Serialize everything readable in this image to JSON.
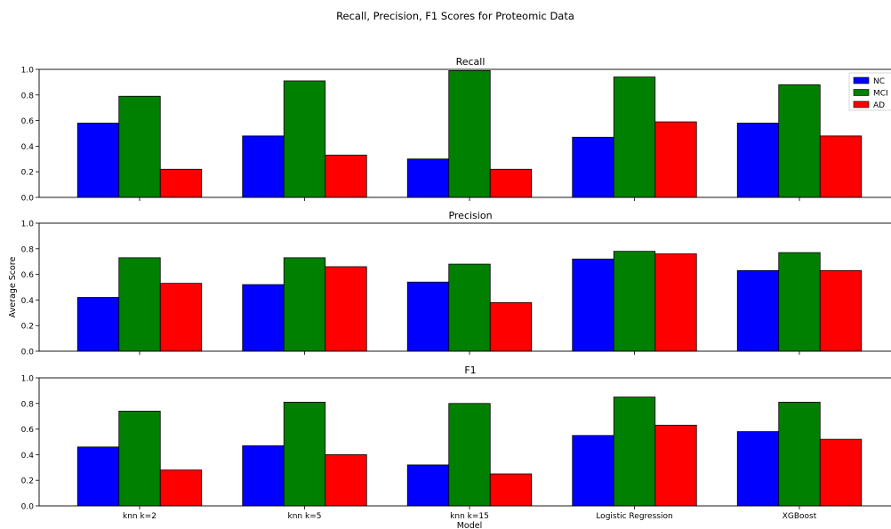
{
  "figure": {
    "suptitle": "Recall, Precision, F1 Scores for Proteomic Data",
    "xlabel": "Model",
    "ylabel": "Average Score"
  },
  "legend": {
    "placement": "top-right",
    "entries": [
      {
        "name": "NC",
        "color": "#0000ff"
      },
      {
        "name": "MCI",
        "color": "#008000"
      },
      {
        "name": "AD",
        "color": "#ff0000"
      }
    ]
  },
  "chart_data": [
    {
      "type": "bar",
      "title": "Recall",
      "categories": [
        "knn k=2",
        "knn k=5",
        "knn k=15",
        "Logistic Regression",
        "XGBoost"
      ],
      "ylim": [
        0,
        1.0
      ],
      "yticks": [
        "0.0",
        "0.2",
        "0.4",
        "0.6",
        "0.8",
        "1.0"
      ],
      "series": [
        {
          "name": "NC",
          "values": [
            0.58,
            0.48,
            0.3,
            0.47,
            0.58
          ]
        },
        {
          "name": "MCI",
          "values": [
            0.79,
            0.91,
            0.99,
            0.94,
            0.88
          ]
        },
        {
          "name": "AD",
          "values": [
            0.22,
            0.33,
            0.22,
            0.59,
            0.48
          ]
        }
      ]
    },
    {
      "type": "bar",
      "title": "Precision",
      "categories": [
        "knn k=2",
        "knn k=5",
        "knn k=15",
        "Logistic Regression",
        "XGBoost"
      ],
      "ylim": [
        0,
        1.0
      ],
      "yticks": [
        "0.0",
        "0.2",
        "0.4",
        "0.6",
        "0.8",
        "1.0"
      ],
      "series": [
        {
          "name": "NC",
          "values": [
            0.42,
            0.52,
            0.54,
            0.72,
            0.63
          ]
        },
        {
          "name": "MCI",
          "values": [
            0.73,
            0.73,
            0.68,
            0.78,
            0.77
          ]
        },
        {
          "name": "AD",
          "values": [
            0.53,
            0.66,
            0.38,
            0.76,
            0.63
          ]
        }
      ]
    },
    {
      "type": "bar",
      "title": "F1",
      "categories": [
        "knn k=2",
        "knn k=5",
        "knn k=15",
        "Logistic Regression",
        "XGBoost"
      ],
      "ylim": [
        0,
        1.0
      ],
      "yticks": [
        "0.0",
        "0.2",
        "0.4",
        "0.6",
        "0.8",
        "1.0"
      ],
      "series": [
        {
          "name": "NC",
          "values": [
            0.46,
            0.47,
            0.32,
            0.55,
            0.58
          ]
        },
        {
          "name": "MCI",
          "values": [
            0.74,
            0.81,
            0.8,
            0.85,
            0.81
          ]
        },
        {
          "name": "AD",
          "values": [
            0.28,
            0.4,
            0.25,
            0.63,
            0.52
          ]
        }
      ]
    }
  ]
}
